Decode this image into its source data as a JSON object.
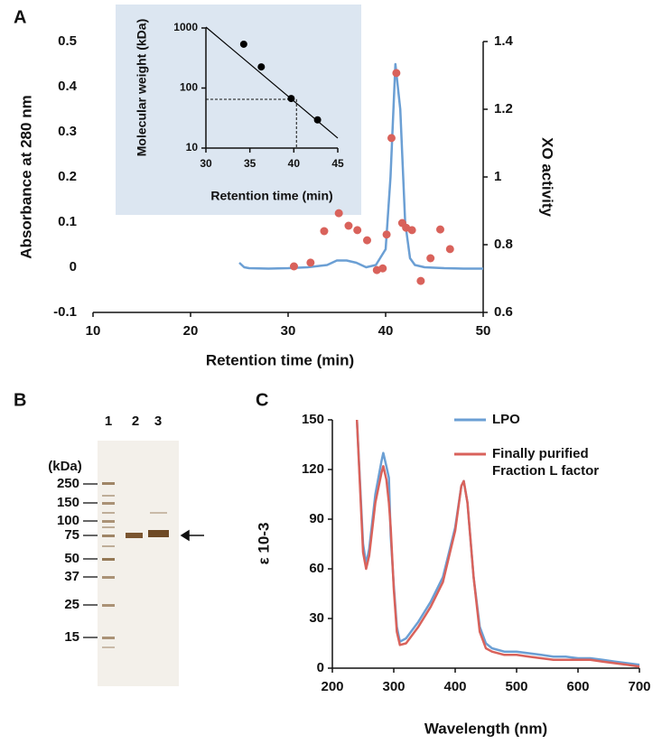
{
  "chart_data": [
    {
      "type": "combo",
      "panel_label": "A",
      "x_label": "Retention time (min)",
      "y_label": "Absorbance at 280 nm",
      "y2_label": "XO activity",
      "xlim": [
        10,
        50
      ],
      "xticks": [
        10,
        20,
        30,
        40,
        50
      ],
      "ylim": [
        -0.1,
        0.5
      ],
      "yticks": [
        -0.1,
        0,
        0.1,
        0.2,
        0.3,
        0.4,
        0.5
      ],
      "y2lim": [
        0.6,
        1.4
      ],
      "y2ticks": [
        0.6,
        0.8,
        1,
        1.2,
        1.4
      ],
      "series": [
        {
          "type": "line",
          "color": "#6b9fd4",
          "x": [
            25,
            25.5,
            26,
            28,
            30,
            32,
            34,
            35,
            36,
            37,
            38,
            39,
            40,
            40.5,
            41,
            41.5,
            42,
            42.5,
            43,
            44,
            46,
            48,
            50
          ],
          "values": [
            0.01,
            0.0,
            -0.002,
            -0.003,
            -0.002,
            0.0,
            0.005,
            0.015,
            0.015,
            0.01,
            0.0,
            0.005,
            0.04,
            0.2,
            0.45,
            0.35,
            0.1,
            0.02,
            0.005,
            0.0,
            -0.002,
            -0.003,
            -0.003
          ]
        },
        {
          "type": "scatter",
          "axis": "y2",
          "color": "#d9625b",
          "x": [
            30.6,
            32.3,
            33.7,
            35.2,
            36.2,
            37.1,
            38.1,
            39.1,
            39.7,
            40.1,
            40.6,
            41.1,
            41.7,
            42.1,
            42.7,
            43.6,
            44.6,
            45.6,
            46.6
          ],
          "values": [
            0.736,
            0.747,
            0.84,
            0.893,
            0.856,
            0.843,
            0.813,
            0.725,
            0.73,
            0.83,
            1.115,
            1.307,
            0.864,
            0.85,
            0.843,
            0.693,
            0.76,
            0.845,
            0.787
          ]
        }
      ]
    },
    {
      "type": "scatter",
      "x_label": "Retention time (min)",
      "y_label": "Molecular weight (kDa)",
      "xlim": [
        30,
        45
      ],
      "xticks": [
        30,
        35,
        40,
        45
      ],
      "ylim": [
        10,
        1000
      ],
      "yticks": [
        10,
        100,
        1000
      ],
      "yscale": "log",
      "guide": {
        "x": 40.3,
        "y": 65
      },
      "series": [
        {
          "type": "line",
          "color": "#000000",
          "x": [
            30,
            45
          ],
          "values": [
            1035,
            14.7
          ]
        },
        {
          "type": "scatter",
          "color": "#000000",
          "x": [
            34.3,
            36.3,
            39.7,
            42.7
          ],
          "values": [
            537,
            225,
            67,
            29.5
          ]
        }
      ]
    },
    {
      "type": "line",
      "panel_label": "C",
      "x_label": "Wavelength (nm)",
      "y_label": "ε 10-3",
      "xlim": [
        200,
        700
      ],
      "xticks": [
        200,
        300,
        400,
        500,
        600,
        700
      ],
      "ylim": [
        0,
        150
      ],
      "yticks": [
        0,
        30,
        60,
        90,
        120,
        150
      ],
      "x": [
        240,
        250,
        255,
        260,
        270,
        280,
        283,
        288,
        292,
        295,
        300,
        305,
        310,
        320,
        340,
        360,
        380,
        400,
        410,
        414,
        420,
        430,
        440,
        450,
        460,
        480,
        500,
        520,
        540,
        560,
        580,
        600,
        620,
        640,
        660,
        680,
        700
      ],
      "series": [
        {
          "name": "LPO",
          "color": "#6b9fd4",
          "values": [
            150,
            75,
            63,
            72,
            105,
            125,
            130,
            122,
            115,
            80,
            50,
            25,
            16,
            18,
            28,
            40,
            55,
            85,
            110,
            113,
            100,
            55,
            25,
            15,
            12,
            10,
            10,
            9,
            8,
            7,
            7,
            6,
            6,
            5,
            4,
            3,
            2
          ]
        },
        {
          "name": "Finally purified Fraction L factor",
          "color": "#d9625b",
          "values": [
            150,
            70,
            60,
            68,
            100,
            118,
            122,
            114,
            100,
            85,
            48,
            22,
            14,
            15,
            25,
            37,
            52,
            83,
            110,
            113,
            100,
            55,
            22,
            12,
            10,
            8,
            8,
            7,
            6,
            5,
            5,
            5,
            5,
            4,
            3,
            2,
            1
          ]
        }
      ]
    }
  ],
  "gel": {
    "panel_label": "B",
    "lane_labels": [
      "1",
      "2",
      "3"
    ],
    "unit_label": "(kDa)",
    "marker_labels": [
      "250",
      "150",
      "100",
      "75",
      "50",
      "37",
      "25",
      "15"
    ]
  }
}
